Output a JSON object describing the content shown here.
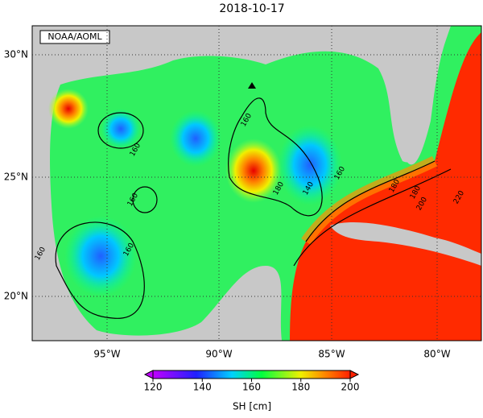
{
  "title": "2018-10-17",
  "credit": "NOAA/AOML",
  "lat_labels": [
    "30°N",
    "25°N",
    "20°N"
  ],
  "lon_labels": [
    "95°W",
    "90°W",
    "85°W",
    "80°W"
  ],
  "contour_labels": [
    "160",
    "160",
    "160",
    "160",
    "160",
    "180",
    "140",
    "160",
    "180",
    "180",
    "200",
    "220"
  ],
  "colorbar": {
    "ticks": [
      "120",
      "140",
      "160",
      "180",
      "200"
    ],
    "label": "SH [cm]"
  }
}
